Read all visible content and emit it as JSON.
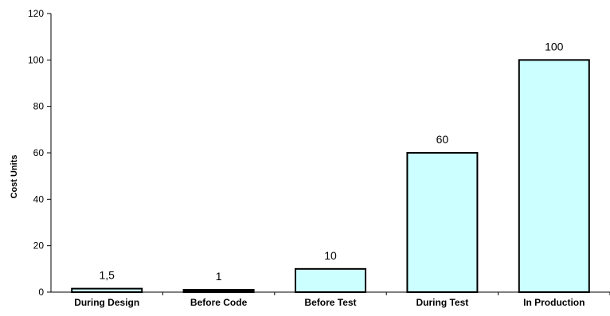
{
  "chart_data": {
    "type": "bar",
    "categories": [
      "During Design",
      "Before Code",
      "Before Test",
      "During Test",
      "In Production"
    ],
    "values": [
      1.5,
      1,
      10,
      60,
      100
    ],
    "data_labels": [
      "1,5",
      "1",
      "10",
      "60",
      "100"
    ],
    "title": "",
    "xlabel": "",
    "ylabel": "Cost Units",
    "ylim": [
      0,
      120
    ],
    "yticks": [
      "0",
      "20",
      "40",
      "60",
      "80",
      "100",
      "120"
    ],
    "grid": false,
    "legend": "none",
    "bar_colors": [
      "#ccffff",
      "#000000",
      "#ccffff",
      "#ccffff",
      "#ccffff"
    ],
    "bar_stroke": "#000000"
  }
}
